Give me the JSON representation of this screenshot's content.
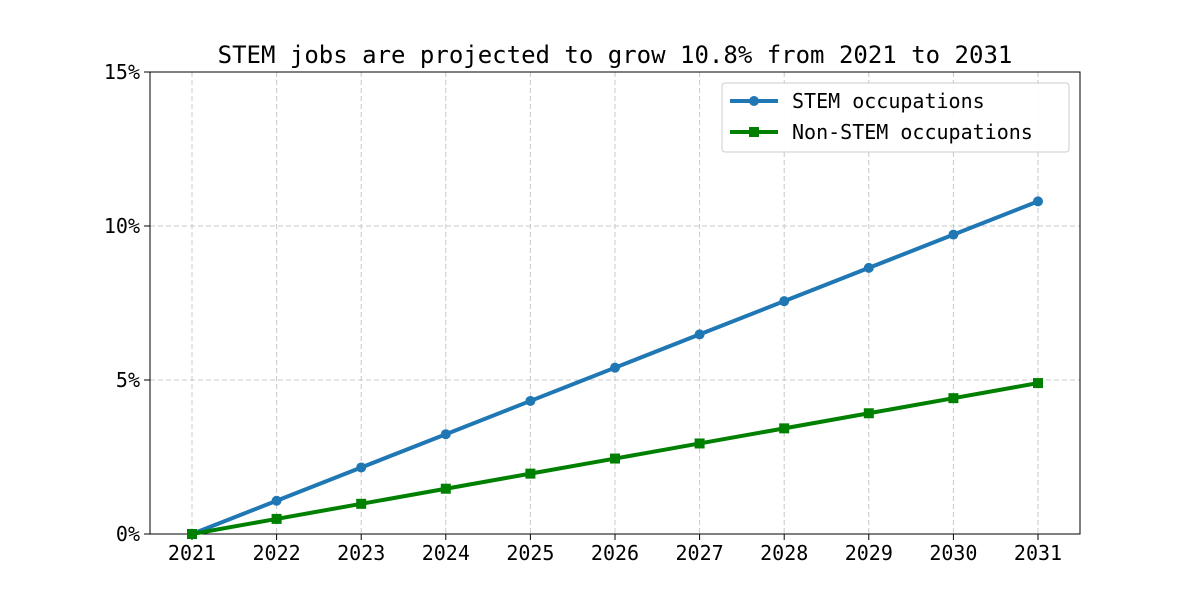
{
  "chart_data": {
    "type": "line",
    "title": "STEM jobs are projected to grow 10.8% from 2021 to 2031",
    "xlabel": "",
    "ylabel": "",
    "x": [
      2021,
      2022,
      2023,
      2024,
      2025,
      2026,
      2027,
      2028,
      2029,
      2030,
      2031
    ],
    "x_tick_labels": [
      "2021",
      "2022",
      "2023",
      "2024",
      "2025",
      "2026",
      "2027",
      "2028",
      "2029",
      "2030",
      "2031"
    ],
    "ylim": [
      0,
      15
    ],
    "y_ticks": [
      0,
      5,
      10,
      15
    ],
    "y_tick_labels": [
      "0%",
      "5%",
      "10%",
      "15%"
    ],
    "grid": true,
    "legend_position": "top-right",
    "series": [
      {
        "name": "STEM occupations",
        "color": "#1f77b4",
        "marker": "circle",
        "values": [
          0,
          1.08,
          2.16,
          3.24,
          4.32,
          5.4,
          6.48,
          7.56,
          8.64,
          9.72,
          10.8
        ]
      },
      {
        "name": "Non-STEM occupations",
        "color": "#008000",
        "marker": "square",
        "values": [
          0,
          0.49,
          0.98,
          1.47,
          1.96,
          2.45,
          2.94,
          3.43,
          3.92,
          4.41,
          4.9
        ]
      }
    ]
  }
}
